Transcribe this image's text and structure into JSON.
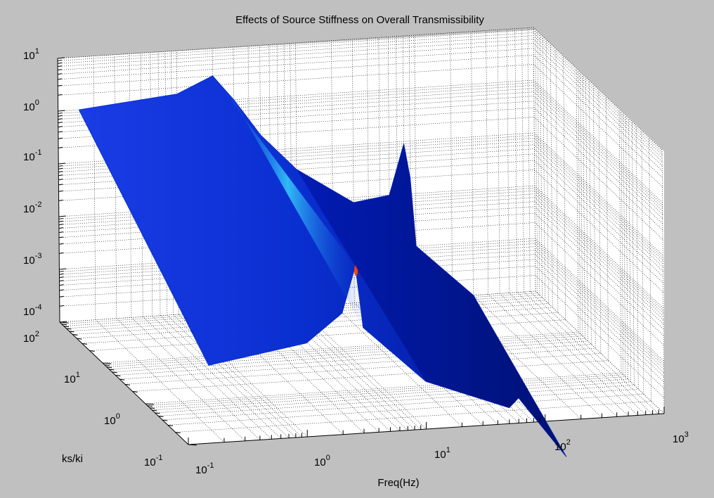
{
  "chart_data": {
    "type": "surface",
    "title": "Effects of Source Stiffness on Overall Transmissibility",
    "xlabel": "Freq(Hz)",
    "ylabel": "ks/ki",
    "zlabel": "",
    "x_scale": "log",
    "y_scale": "log",
    "z_scale": "log",
    "xlim": [
      0.1,
      1000
    ],
    "ylim": [
      0.1,
      100
    ],
    "zlim": [
      0.0001,
      10
    ],
    "grid": "on",
    "colormap": "jet",
    "x_ticks": [
      {
        "base": "10",
        "exp": "-1"
      },
      {
        "base": "10",
        "exp": "0"
      },
      {
        "base": "10",
        "exp": "1"
      },
      {
        "base": "10",
        "exp": "2"
      },
      {
        "base": "10",
        "exp": "3"
      }
    ],
    "y_ticks": [
      {
        "base": "10",
        "exp": "-1"
      },
      {
        "base": "10",
        "exp": "0"
      },
      {
        "base": "10",
        "exp": "1"
      },
      {
        "base": "10",
        "exp": "2"
      }
    ],
    "z_ticks": [
      {
        "base": "10",
        "exp": "-4"
      },
      {
        "base": "10",
        "exp": "-3"
      },
      {
        "base": "10",
        "exp": "-2"
      },
      {
        "base": "10",
        "exp": "-1"
      },
      {
        "base": "10",
        "exp": "0"
      },
      {
        "base": "10",
        "exp": "1"
      }
    ],
    "surface_boundary": {
      "back_edge_ks_ki_100": [
        [
          0.15,
          1.0
        ],
        [
          1.0,
          1.5
        ],
        [
          2.0,
          3.0
        ],
        [
          3.0,
          1.0
        ],
        [
          5.0,
          0.2
        ],
        [
          10,
          0.04
        ],
        [
          30,
          0.008
        ],
        [
          60,
          0.01
        ],
        [
          80,
          0.09
        ],
        [
          90,
          0.02
        ],
        [
          100,
          0.001
        ],
        [
          300,
          0.0001
        ]
      ],
      "front_edge_ks_ki_0_1": [
        [
          0.15,
          0.003
        ],
        [
          1.0,
          0.006
        ],
        [
          2.0,
          0.02
        ],
        [
          2.6,
          0.15
        ],
        [
          3.0,
          0.01
        ],
        [
          10,
          0.0008
        ],
        [
          50,
          0.0002
        ],
        [
          60,
          0.0003
        ],
        [
          150,
          1e-05
        ]
      ]
    }
  },
  "colors": {
    "figure_bg": "#c0c0c0",
    "axes_bg": "#ffffff",
    "surface_main": "#0a2fd0",
    "surface_dark": "#00008f",
    "peak_highlight": "#39d9ff",
    "peak_hot": "#ff4000"
  }
}
